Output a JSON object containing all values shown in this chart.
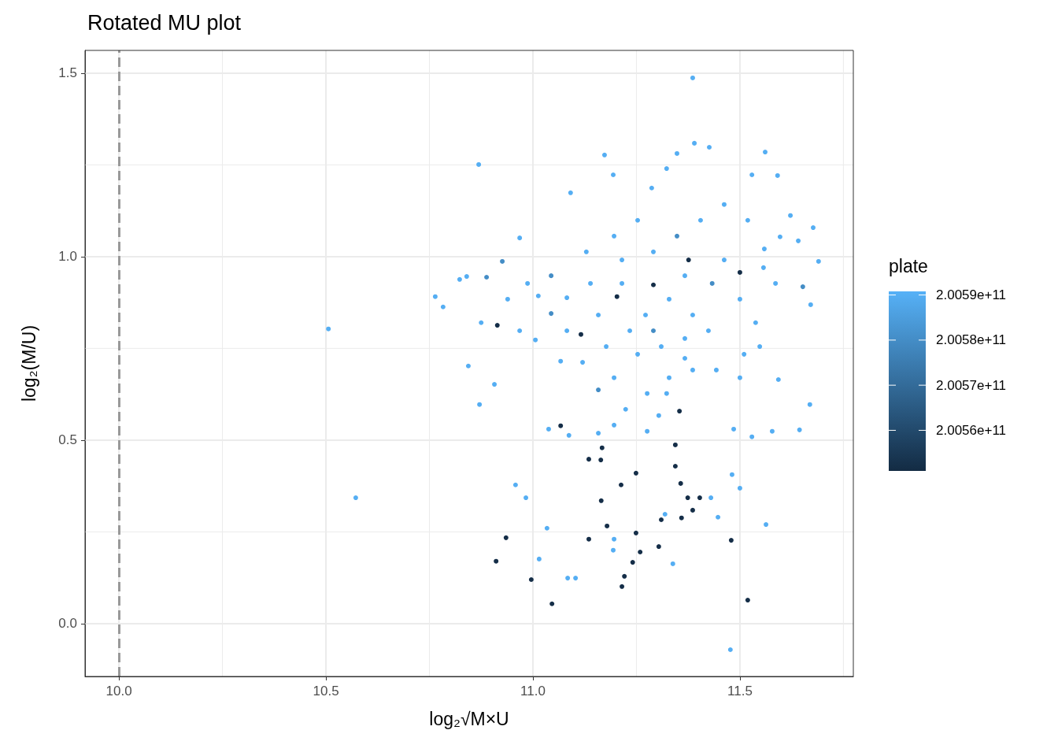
{
  "chart_data": {
    "type": "scatter",
    "title": "Rotated MU plot",
    "xlabel": "log₂√M×U",
    "ylabel": "log₂(M/U)",
    "clabel": "plate",
    "xlim": [
      9.918,
      11.774
    ],
    "ylim": [
      -0.144,
      1.562
    ],
    "xticks": [
      {
        "value": 10,
        "label": "10.0"
      },
      {
        "value": 10.5,
        "label": "10.5"
      },
      {
        "value": 11,
        "label": "11.0"
      },
      {
        "value": 11.5,
        "label": "11.5"
      }
    ],
    "yticks": [
      {
        "value": 0,
        "label": "0.0"
      },
      {
        "value": 0.5,
        "label": "0.5"
      },
      {
        "value": 1,
        "label": "1.0"
      },
      {
        "value": 1.5,
        "label": "1.5"
      }
    ],
    "clim": [
      200551000000,
      200590800000
    ],
    "cticks": [
      {
        "value": 200560000000,
        "label": "2.0056e+11"
      },
      {
        "value": 200570000000,
        "label": "2.0057e+11"
      },
      {
        "value": 200580000000,
        "label": "2.0058e+11"
      },
      {
        "value": 200590000000,
        "label": "2.0059e+11"
      }
    ],
    "grid": true,
    "marker": "circle",
    "ref_lines": [
      {
        "axis": "x",
        "value": 10,
        "label": null,
        "color": "#999999",
        "line_style": "dashed"
      }
    ],
    "series": [
      {
        "x": [
          10.506,
          10.572,
          10.869,
          10.764,
          10.783,
          10.823,
          10.84,
          10.844,
          10.871,
          10.875,
          10.888,
          10.914,
          10.911,
          10.935,
          10.926,
          10.907,
          10.958,
          10.983,
          10.996,
          11.046,
          11.015,
          11.034,
          11.067,
          11.038,
          11.084,
          11.103,
          11.135,
          11.164,
          11.167,
          11.165,
          11.179,
          11.135,
          11.196,
          11.194,
          11.213,
          11.249,
          11.215,
          11.221,
          11.241,
          11.259,
          11.249,
          11.304,
          11.31,
          11.319,
          11.338,
          11.344,
          11.344,
          11.359,
          11.357,
          11.374,
          11.386,
          11.403,
          11.43,
          11.447,
          11.479,
          11.477,
          11.519,
          11.563,
          11.481,
          11.5,
          11.485,
          11.529,
          11.578,
          11.644,
          11.669,
          11.69,
          11.671,
          11.677,
          11.652,
          11.593,
          11.561,
          11.386,
          11.39,
          11.426,
          11.348,
          11.323,
          11.173,
          11.194,
          11.287,
          11.091,
          10.968,
          11.304,
          11.354,
          11.376,
          11.291,
          11.203,
          11.116,
          11.5,
          11.529,
          11.591,
          11.622,
          11.597,
          11.559,
          11.641,
          11.013,
          11.044,
          11.006,
          11.082,
          11.129,
          11.067,
          11.158,
          11.196,
          11.224,
          11.276,
          11.329,
          11.386,
          11.443,
          11.51,
          11.538,
          11.5,
          11.433,
          11.367,
          11.329,
          11.272,
          11.234,
          11.177,
          11.12,
          11.158,
          11.215,
          11.291,
          11.348,
          11.405,
          11.462,
          11.519,
          11.557,
          11.586,
          11.424,
          11.367,
          11.31,
          11.253,
          11.291,
          11.386,
          11.462,
          11.253,
          11.196,
          11.215,
          11.139,
          11.082,
          10.968,
          10.987,
          11.044,
          10.939,
          11.548,
          11.367,
          11.5,
          11.323,
          11.158,
          11.087,
          11.196,
          11.276
        ],
        "values": [
          0.803,
          0.343,
          1.251,
          0.891,
          0.863,
          0.938,
          0.946,
          0.702,
          0.597,
          0.82,
          0.944,
          0.813,
          0.17,
          0.234,
          0.987,
          0.652,
          0.378,
          0.343,
          0.12,
          0.054,
          0.176,
          0.26,
          0.539,
          0.53,
          0.124,
          0.124,
          0.448,
          0.446,
          0.479,
          0.335,
          0.266,
          0.23,
          0.23,
          0.2,
          0.378,
          0.41,
          0.101,
          0.129,
          0.167,
          0.195,
          0.247,
          0.21,
          0.283,
          0.298,
          0.163,
          0.487,
          0.429,
          0.288,
          0.382,
          0.343,
          0.309,
          0.343,
          0.343,
          0.29,
          0.227,
          -0.071,
          0.064,
          0.27,
          0.406,
          0.369,
          0.53,
          0.509,
          0.524,
          0.528,
          0.597,
          0.987,
          0.869,
          1.079,
          0.918,
          0.665,
          1.285,
          1.487,
          1.309,
          1.298,
          1.281,
          1.24,
          1.277,
          1.223,
          1.187,
          1.174,
          1.051,
          0.567,
          0.579,
          0.991,
          0.923,
          0.891,
          0.788,
          0.957,
          1.223,
          1.221,
          1.112,
          1.054,
          1.021,
          1.043,
          0.893,
          0.845,
          0.773,
          0.888,
          1.013,
          0.715,
          0.637,
          0.67,
          0.584,
          0.627,
          0.67,
          0.691,
          0.691,
          0.734,
          0.82,
          0.884,
          0.927,
          0.948,
          0.884,
          0.841,
          0.798,
          0.755,
          0.712,
          0.841,
          0.927,
          1.013,
          1.056,
          1.099,
          1.142,
          1.099,
          0.97,
          0.927,
          0.798,
          0.777,
          0.755,
          0.734,
          0.798,
          0.841,
          0.991,
          1.099,
          1.056,
          0.991,
          0.927,
          0.798,
          0.798,
          0.927,
          0.948,
          0.884,
          0.755,
          0.723,
          0.67,
          0.627,
          0.519,
          0.513,
          0.541,
          0.524
        ],
        "cvalues": [
          200590000000,
          200590000000,
          200590000000,
          200590000000,
          200590000000,
          200590000000,
          200590000000,
          200590000000,
          200590000000,
          200590000000,
          200580000000,
          200552000000,
          200552000000,
          200552000000,
          200580000000,
          200590000000,
          200590000000,
          200590000000,
          200552000000,
          200552000000,
          200590000000,
          200590000000,
          200552000000,
          200590000000,
          200590000000,
          200590000000,
          200552000000,
          200552000000,
          200552000000,
          200552000000,
          200552000000,
          200552000000,
          200590000000,
          200590000000,
          200552000000,
          200552000000,
          200552000000,
          200552000000,
          200552000000,
          200552000000,
          200552000000,
          200552000000,
          200552000000,
          200590000000,
          200590000000,
          200552000000,
          200552000000,
          200552000000,
          200552000000,
          200552000000,
          200552000000,
          200552000000,
          200590000000,
          200590000000,
          200552000000,
          200590000000,
          200552000000,
          200590000000,
          200590000000,
          200590000000,
          200590000000,
          200590000000,
          200590000000,
          200590000000,
          200590000000,
          200590000000,
          200590000000,
          200590000000,
          200580000000,
          200590000000,
          200590000000,
          200590000000,
          200590000000,
          200590000000,
          200590000000,
          200590000000,
          200590000000,
          200590000000,
          200590000000,
          200590000000,
          200590000000,
          200590000000,
          200552000000,
          200552000000,
          200552000000,
          200552000000,
          200552000000,
          200552000000,
          200590000000,
          200590000000,
          200590000000,
          200590000000,
          200590000000,
          200590000000,
          200590000000,
          200580000000,
          200590000000,
          200590000000,
          200590000000,
          200590000000,
          200580000000,
          200590000000,
          200590000000,
          200590000000,
          200590000000,
          200590000000,
          200590000000,
          200590000000,
          200590000000,
          200590000000,
          200580000000,
          200590000000,
          200590000000,
          200590000000,
          200590000000,
          200590000000,
          200590000000,
          200590000000,
          200590000000,
          200590000000,
          200580000000,
          200590000000,
          200590000000,
          200590000000,
          200590000000,
          200590000000,
          200590000000,
          200590000000,
          200590000000,
          200590000000,
          200580000000,
          200590000000,
          200590000000,
          200590000000,
          200590000000,
          200590000000,
          200590000000,
          200590000000,
          200590000000,
          200590000000,
          200580000000,
          200590000000,
          200590000000,
          200590000000,
          200590000000,
          200590000000,
          200590000000,
          200590000000,
          200590000000,
          200590000000
        ]
      }
    ]
  }
}
